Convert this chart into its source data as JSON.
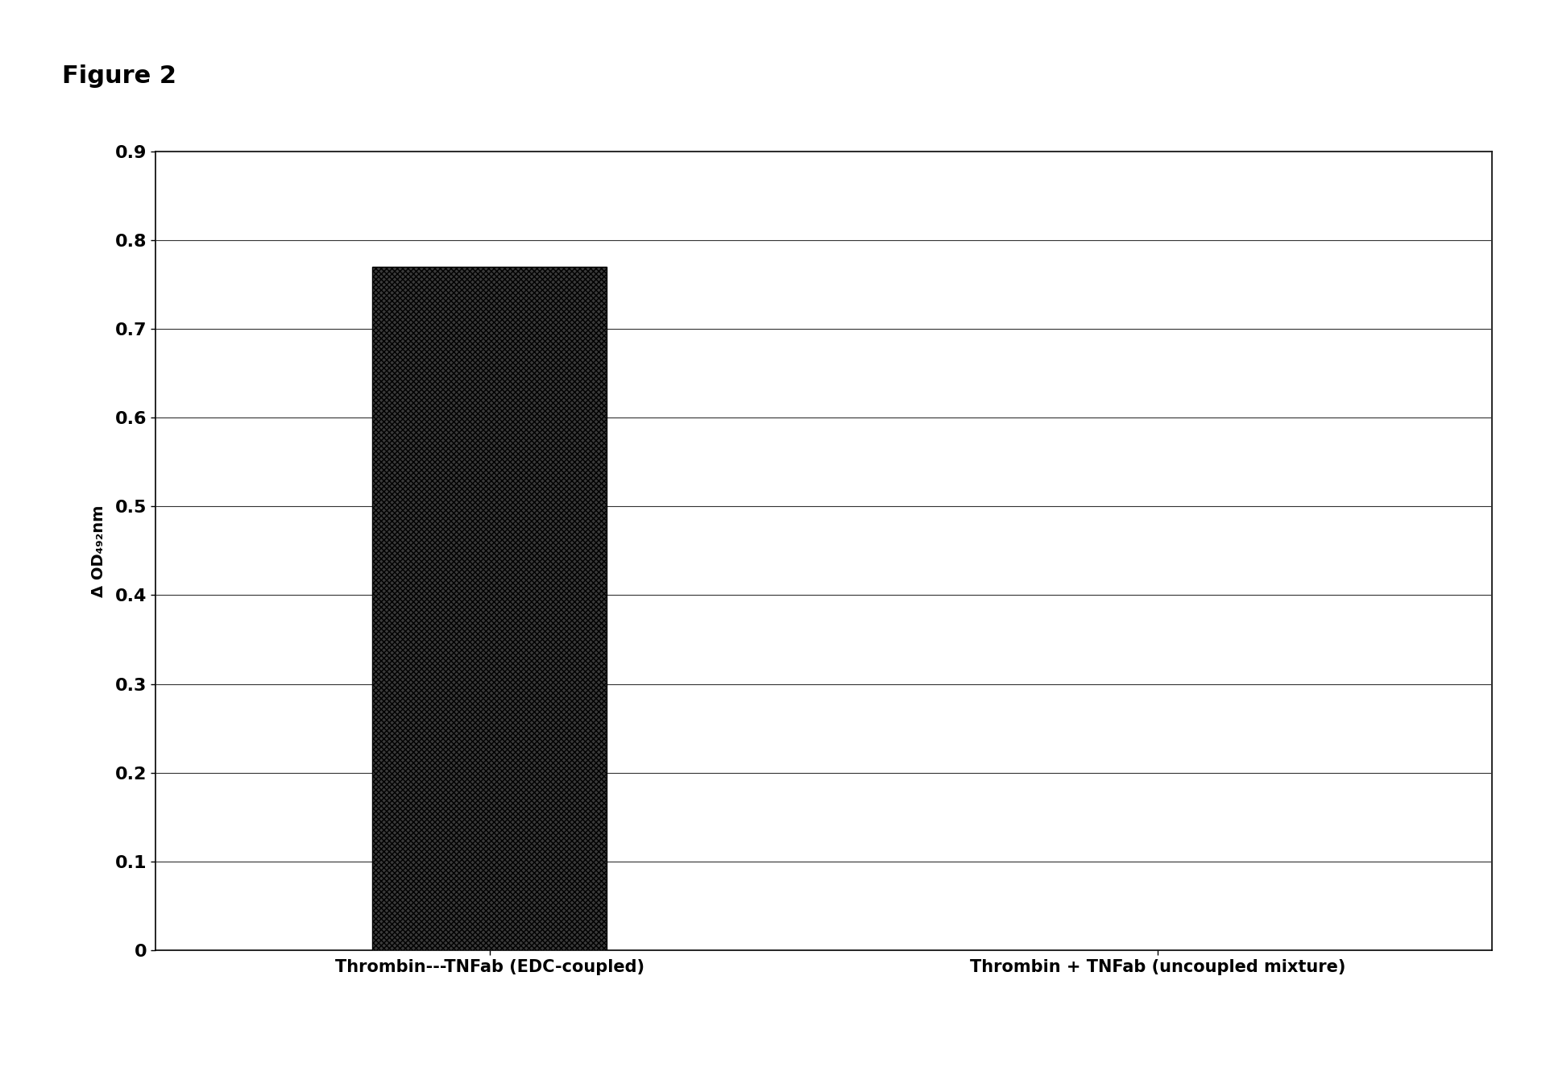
{
  "categories": [
    "Thrombin---TNFab (EDC-coupled)",
    "Thrombin + TNFab (uncoupled mixture)"
  ],
  "values": [
    0.77,
    0.0
  ],
  "bar_color": "#3a3a3a",
  "bar_width": 0.35,
  "ylabel": "Δ OD₄₉₂nm",
  "ylim": [
    0,
    0.9
  ],
  "yticks": [
    0,
    0.1,
    0.2,
    0.3,
    0.4,
    0.5,
    0.6,
    0.7,
    0.8,
    0.9
  ],
  "ytick_labels": [
    "0",
    "0.1",
    "0.2",
    "0.3",
    "0.4",
    "0.5",
    "0.6",
    "0.7",
    "0.8",
    "0.9"
  ],
  "figure_label": "Figure 2",
  "background_color": "#ffffff",
  "grid_color": "#333333",
  "figsize": [
    19.29,
    13.4
  ],
  "dpi": 100
}
